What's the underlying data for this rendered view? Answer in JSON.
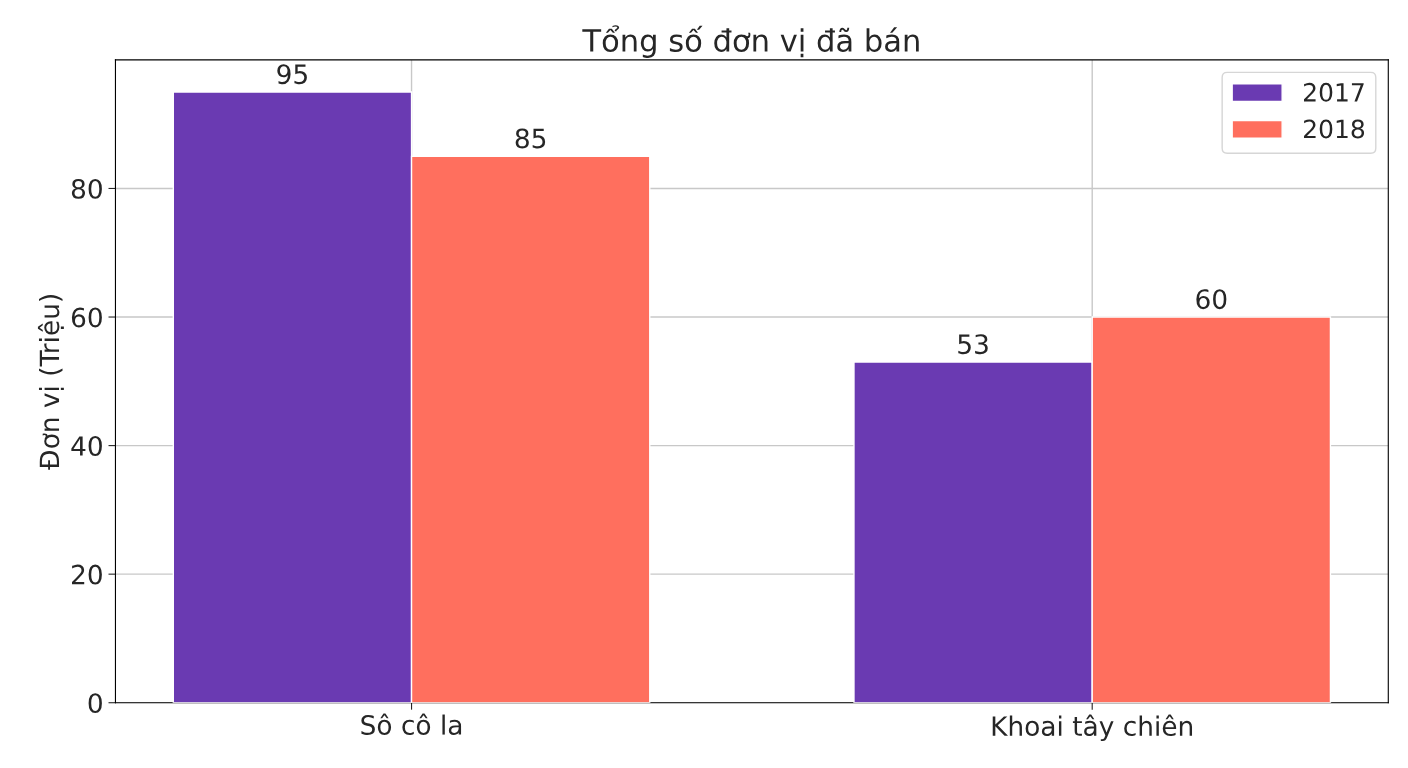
{
  "chart_data": {
    "type": "bar",
    "title": "Tổng số đơn vị đã bán",
    "ylabel": "Đơn vị (Triệu)",
    "categories": [
      "Sô cô la",
      "Khoai tây chiên"
    ],
    "series": [
      {
        "name": "2017",
        "color": "#6a3ab2",
        "values": [
          95,
          53
        ]
      },
      {
        "name": "2018",
        "color": "#ff6f5e",
        "values": [
          85,
          60
        ]
      }
    ],
    "ylim": [
      0,
      100
    ],
    "yticks": [
      0,
      20,
      40,
      60,
      80
    ],
    "grid": true,
    "legend": "top right",
    "data_labels": true
  }
}
